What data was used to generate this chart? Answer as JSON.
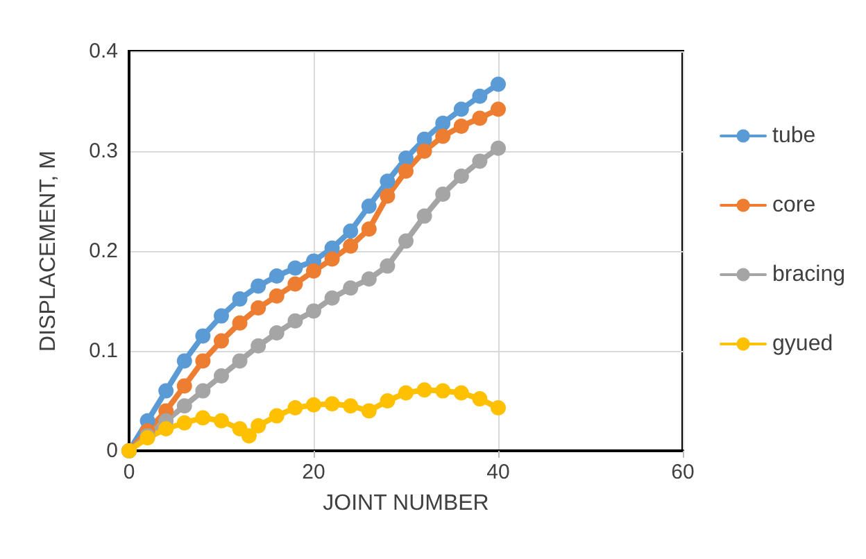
{
  "chart_data": {
    "type": "line",
    "xlabel": "JOINT NUMBER",
    "ylabel": "DISPLACEMENT, M",
    "x": [
      0,
      2,
      4,
      6,
      8,
      10,
      12,
      14,
      16,
      18,
      20,
      22,
      24,
      26,
      28,
      30,
      32,
      34,
      36,
      38,
      40
    ],
    "series": [
      {
        "name": "tube",
        "color": "#5b9bd5",
        "values": [
          0,
          0.03,
          0.06,
          0.09,
          0.115,
          0.135,
          0.152,
          0.165,
          0.175,
          0.183,
          0.19,
          0.203,
          0.22,
          0.245,
          0.27,
          0.293,
          0.312,
          0.328,
          0.342,
          0.355,
          0.367
        ]
      },
      {
        "name": "core",
        "color": "#ed7d31",
        "values": [
          0,
          0.02,
          0.04,
          0.065,
          0.09,
          0.11,
          0.128,
          0.143,
          0.155,
          0.167,
          0.18,
          0.192,
          0.205,
          0.222,
          0.255,
          0.28,
          0.3,
          0.315,
          0.325,
          0.333,
          0.342
        ]
      },
      {
        "name": "bracing",
        "color": "#a5a5a5",
        "values": [
          0,
          0.015,
          0.03,
          0.045,
          0.06,
          0.075,
          0.09,
          0.105,
          0.118,
          0.13,
          0.14,
          0.153,
          0.163,
          0.172,
          0.185,
          0.21,
          0.235,
          0.257,
          0.275,
          0.29,
          0.303
        ]
      },
      {
        "name": "gyued",
        "color": "#ffc000",
        "x": [
          0,
          2,
          4,
          6,
          8,
          10,
          12,
          13,
          14,
          16,
          18,
          20,
          22,
          24,
          26,
          28,
          30,
          32,
          34,
          36,
          38,
          40
        ],
        "values": [
          0,
          0.013,
          0.022,
          0.028,
          0.033,
          0.03,
          0.022,
          0.015,
          0.025,
          0.035,
          0.043,
          0.046,
          0.047,
          0.045,
          0.04,
          0.05,
          0.058,
          0.061,
          0.06,
          0.058,
          0.052,
          0.043
        ]
      }
    ],
    "xlim": [
      0,
      60
    ],
    "xticks": [
      0,
      20,
      40,
      60
    ],
    "ylim": [
      0,
      0.4
    ],
    "yticks": [
      0,
      0.1,
      0.2,
      0.3,
      0.4
    ],
    "grid": true,
    "legend": "right",
    "marker": "circle",
    "line_style": "solid"
  }
}
